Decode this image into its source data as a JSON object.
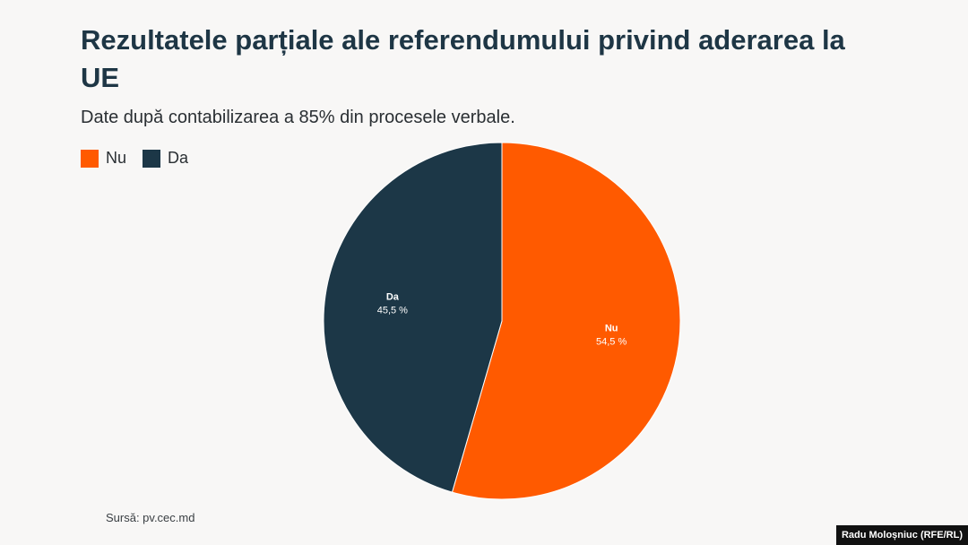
{
  "chart_data": {
    "type": "pie",
    "title": "Rezultatele parțiale ale referendumului privind aderarea la UE",
    "subtitle": "Date după contabilizarea a 85% din procesele verbale.",
    "slices": [
      {
        "label": "Nu",
        "value": 54.5,
        "value_label": "54,5 %",
        "color": "#ff5a00"
      },
      {
        "label": "Da",
        "value": 45.5,
        "value_label": "45,5 %",
        "color": "#1c3747"
      }
    ],
    "legend": [
      "Nu",
      "Da"
    ],
    "legend_position": "top-left"
  },
  "footer": {
    "source": "Sursă: pv.cec.md",
    "credit": "Radu Moloșniuc (RFE/RL)"
  }
}
